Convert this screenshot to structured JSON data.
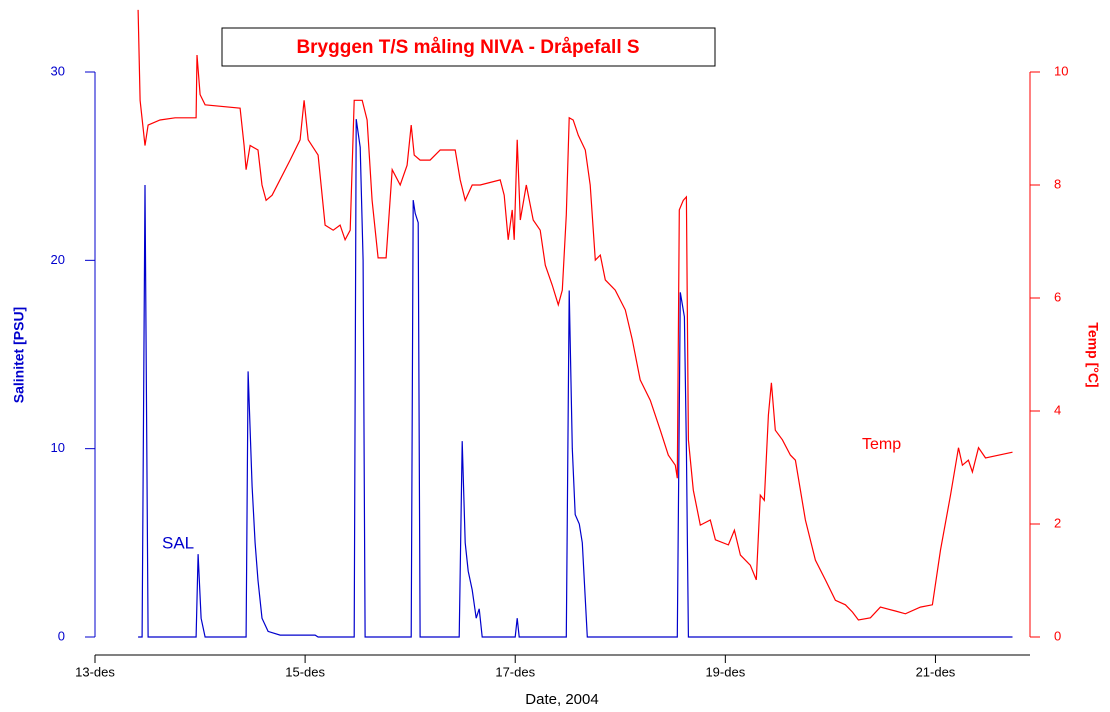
{
  "chart_data": {
    "type": "line",
    "title": "Bryggen T/S måling NIVA - Dråpefall S",
    "x_label": "Date, 2004",
    "y_label": "Salinitet [PSU]",
    "y2_label": "Temp [°C]",
    "xlim": [
      13,
      21.9
    ],
    "xticks": [
      {
        "value": 13,
        "label": "13-des"
      },
      {
        "value": 15,
        "label": "15-des"
      },
      {
        "value": 17,
        "label": "17-des"
      },
      {
        "value": 19,
        "label": "19-des"
      },
      {
        "value": 21,
        "label": "21-des"
      }
    ],
    "ylim": [
      0,
      30
    ],
    "yticks": [
      0,
      10,
      20,
      30
    ],
    "y2lim": [
      0,
      10
    ],
    "y2ticks": [
      0,
      2,
      4,
      6,
      8,
      10
    ],
    "series": [
      {
        "name": "SAL",
        "color": "#0000cc",
        "x": [
          13.41,
          13.448,
          13.476,
          13.505,
          13.962,
          13.981,
          14.01,
          14.048,
          14.438,
          14.457,
          14.495,
          14.524,
          14.552,
          14.59,
          14.648,
          14.762,
          15.095,
          15.124,
          15.467,
          15.486,
          15.524,
          15.552,
          15.571,
          16.01,
          16.029,
          16.048,
          16.076,
          16.095,
          16.467,
          16.495,
          16.524,
          16.552,
          16.59,
          16.629,
          16.657,
          16.686,
          17.0,
          17.019,
          17.038,
          17.486,
          17.514,
          17.543,
          17.571,
          17.61,
          17.638,
          17.667,
          17.686,
          18.543,
          18.571,
          18.61,
          18.629,
          18.648,
          21.733
        ],
        "values": [
          0,
          0,
          24,
          0,
          0,
          4.4,
          1,
          0,
          0,
          14.1,
          8,
          5,
          3,
          1,
          0.3,
          0.1,
          0.1,
          0,
          0,
          27.5,
          26,
          20,
          0,
          0,
          23.2,
          22.5,
          22,
          0,
          0,
          10.4,
          5,
          3.5,
          2.5,
          1,
          1.5,
          0,
          0,
          1,
          0,
          0,
          18.4,
          10,
          6.5,
          6,
          5,
          2,
          0,
          0,
          18.3,
          17,
          10,
          0,
          0
        ]
      },
      {
        "name": "Temp",
        "color": "#ff0000",
        "axis": "y2",
        "x": [
          13.41,
          13.429,
          13.476,
          13.505,
          13.619,
          13.762,
          13.962,
          13.971,
          14.0,
          14.048,
          14.381,
          14.419,
          14.438,
          14.476,
          14.552,
          14.59,
          14.629,
          14.686,
          14.857,
          14.952,
          14.99,
          15.029,
          15.124,
          15.19,
          15.267,
          15.333,
          15.381,
          15.429,
          15.467,
          15.543,
          15.59,
          15.638,
          15.695,
          15.771,
          15.829,
          15.905,
          15.971,
          16.01,
          16.038,
          16.095,
          16.19,
          16.286,
          16.429,
          16.476,
          16.524,
          16.59,
          16.667,
          16.857,
          16.895,
          16.933,
          16.971,
          16.99,
          17.019,
          17.048,
          17.105,
          17.171,
          17.238,
          17.286,
          17.352,
          17.41,
          17.448,
          17.486,
          17.514,
          17.552,
          17.6,
          17.667,
          17.714,
          17.762,
          17.81,
          17.857,
          17.952,
          18.048,
          18.114,
          18.19,
          18.286,
          18.381,
          18.457,
          18.524,
          18.543,
          18.562,
          18.6,
          18.629,
          18.648,
          18.695,
          18.762,
          18.857,
          18.905,
          19.029,
          19.086,
          19.143,
          19.238,
          19.295,
          19.333,
          19.371,
          19.41,
          19.438,
          19.476,
          19.543,
          19.619,
          19.667,
          19.762,
          19.857,
          19.952,
          20.048,
          20.143,
          20.21,
          20.267,
          20.381,
          20.476,
          20.619,
          20.714,
          20.857,
          20.971,
          21.048,
          21.143,
          21.219,
          21.257,
          21.314,
          21.352,
          21.41,
          21.476,
          21.733
        ],
        "values": [
          11.1,
          9.5,
          8.7,
          9.06,
          9.15,
          9.19,
          9.19,
          10.3,
          9.6,
          9.42,
          9.36,
          8.7,
          8.27,
          8.7,
          8.62,
          8.0,
          7.73,
          7.82,
          8.44,
          8.8,
          9.5,
          8.8,
          8.53,
          7.29,
          7.2,
          7.29,
          7.03,
          7.2,
          9.5,
          9.5,
          9.15,
          7.73,
          6.71,
          6.71,
          8.27,
          8.0,
          8.35,
          9.06,
          8.53,
          8.44,
          8.44,
          8.62,
          8.62,
          8.09,
          7.73,
          8.0,
          8.0,
          8.09,
          7.82,
          7.03,
          7.56,
          7.03,
          8.8,
          7.38,
          8.0,
          7.38,
          7.2,
          6.58,
          6.23,
          5.88,
          6.14,
          7.47,
          9.19,
          9.15,
          8.88,
          8.62,
          8.0,
          6.67,
          6.76,
          6.32,
          6.14,
          5.79,
          5.26,
          4.55,
          4.19,
          3.66,
          3.22,
          3.04,
          2.81,
          7.56,
          7.73,
          7.79,
          3.49,
          2.6,
          1.98,
          2.07,
          1.72,
          1.63,
          1.89,
          1.45,
          1.27,
          1.01,
          2.51,
          2.42,
          3.93,
          4.5,
          3.66,
          3.49,
          3.22,
          3.13,
          2.07,
          1.36,
          1.01,
          0.65,
          0.57,
          0.44,
          0.3,
          0.34,
          0.53,
          0.46,
          0.41,
          0.53,
          0.57,
          1.54,
          2.51,
          3.35,
          3.04,
          3.13,
          2.92,
          3.35,
          3.17,
          3.27
        ]
      }
    ]
  }
}
